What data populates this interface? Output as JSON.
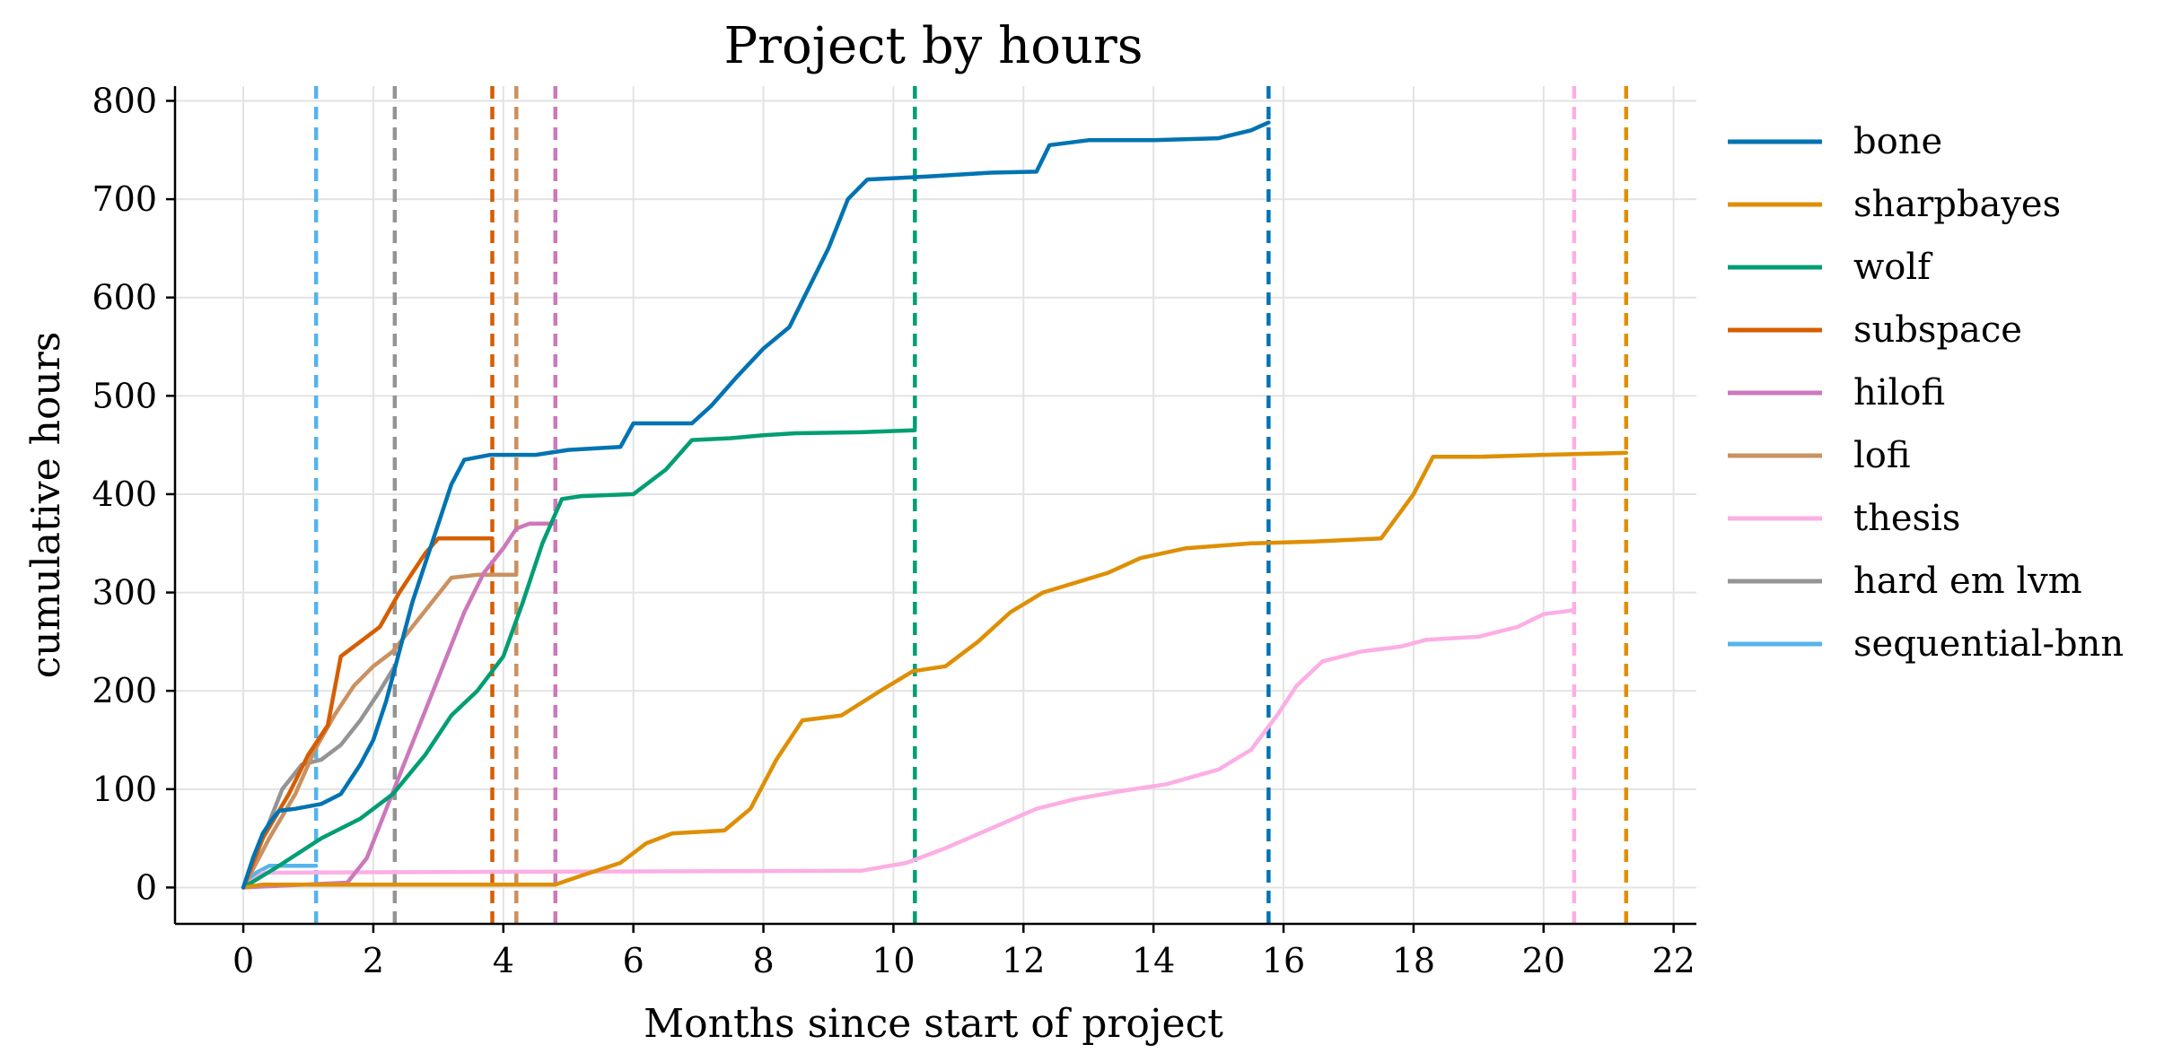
{
  "chart_data": {
    "type": "line",
    "title": "Project by hours",
    "xlabel": "Months since start of project",
    "ylabel": "cumulative hours",
    "xlim": [
      -1.05,
      22.35
    ],
    "ylim": [
      -37,
      815
    ],
    "xticks": [
      0,
      2,
      4,
      6,
      8,
      10,
      12,
      14,
      16,
      18,
      20,
      22
    ],
    "yticks": [
      0,
      100,
      200,
      300,
      400,
      500,
      600,
      700,
      800
    ],
    "grid": true,
    "legend_position": "outside-right",
    "series": [
      {
        "name": "bone",
        "color": "#0173b2",
        "end_marker_x": 15.77,
        "points": [
          [
            0,
            0
          ],
          [
            0.15,
            30
          ],
          [
            0.3,
            55
          ],
          [
            0.45,
            70
          ],
          [
            0.55,
            78
          ],
          [
            0.8,
            80
          ],
          [
            1.2,
            85
          ],
          [
            1.5,
            95
          ],
          [
            1.8,
            125
          ],
          [
            2.0,
            150
          ],
          [
            2.2,
            190
          ],
          [
            2.4,
            240
          ],
          [
            2.6,
            290
          ],
          [
            2.8,
            330
          ],
          [
            3.0,
            370
          ],
          [
            3.2,
            410
          ],
          [
            3.4,
            435
          ],
          [
            3.8,
            440
          ],
          [
            4.5,
            440
          ],
          [
            5.0,
            445
          ],
          [
            5.8,
            448
          ],
          [
            6.0,
            472
          ],
          [
            6.9,
            472
          ],
          [
            7.2,
            490
          ],
          [
            7.6,
            520
          ],
          [
            8.0,
            548
          ],
          [
            8.4,
            570
          ],
          [
            8.7,
            610
          ],
          [
            9.0,
            650
          ],
          [
            9.3,
            700
          ],
          [
            9.6,
            720
          ],
          [
            10.5,
            723
          ],
          [
            11.5,
            727
          ],
          [
            12.2,
            728
          ],
          [
            12.4,
            755
          ],
          [
            13.0,
            760
          ],
          [
            14.0,
            760
          ],
          [
            15.0,
            762
          ],
          [
            15.5,
            770
          ],
          [
            15.77,
            778
          ]
        ]
      },
      {
        "name": "sharpbayes",
        "color": "#de8f05",
        "end_marker_x": 21.27,
        "points": [
          [
            0,
            0
          ],
          [
            0.3,
            3
          ],
          [
            4.8,
            3
          ],
          [
            5.2,
            12
          ],
          [
            5.8,
            25
          ],
          [
            6.2,
            45
          ],
          [
            6.6,
            55
          ],
          [
            7.4,
            58
          ],
          [
            7.8,
            80
          ],
          [
            8.2,
            130
          ],
          [
            8.6,
            170
          ],
          [
            9.2,
            175
          ],
          [
            9.8,
            200
          ],
          [
            10.3,
            220
          ],
          [
            10.8,
            225
          ],
          [
            11.3,
            250
          ],
          [
            11.8,
            280
          ],
          [
            12.3,
            300
          ],
          [
            12.8,
            310
          ],
          [
            13.3,
            320
          ],
          [
            13.8,
            335
          ],
          [
            14.5,
            345
          ],
          [
            15.5,
            350
          ],
          [
            16.5,
            352
          ],
          [
            17.5,
            355
          ],
          [
            18.0,
            400
          ],
          [
            18.3,
            438
          ],
          [
            19.0,
            438
          ],
          [
            20.0,
            440
          ],
          [
            21.27,
            442
          ]
        ]
      },
      {
        "name": "wolf",
        "color": "#029e73",
        "end_marker_x": 10.33,
        "points": [
          [
            0,
            0
          ],
          [
            0.5,
            20
          ],
          [
            1.2,
            50
          ],
          [
            1.8,
            70
          ],
          [
            2.3,
            95
          ],
          [
            2.8,
            135
          ],
          [
            3.2,
            175
          ],
          [
            3.6,
            200
          ],
          [
            4.0,
            235
          ],
          [
            4.3,
            290
          ],
          [
            4.6,
            350
          ],
          [
            4.9,
            395
          ],
          [
            5.2,
            398
          ],
          [
            6.0,
            400
          ],
          [
            6.5,
            425
          ],
          [
            6.9,
            455
          ],
          [
            7.5,
            457
          ],
          [
            8.0,
            460
          ],
          [
            8.5,
            462
          ],
          [
            9.5,
            463
          ],
          [
            10.33,
            465
          ]
        ]
      },
      {
        "name": "subspace",
        "color": "#d55e00",
        "end_marker_x": 3.83,
        "points": [
          [
            0,
            0
          ],
          [
            0.3,
            50
          ],
          [
            0.7,
            95
          ],
          [
            1.0,
            135
          ],
          [
            1.3,
            165
          ],
          [
            1.5,
            235
          ],
          [
            1.8,
            250
          ],
          [
            2.1,
            265
          ],
          [
            2.4,
            300
          ],
          [
            2.8,
            340
          ],
          [
            3.0,
            355
          ],
          [
            3.83,
            355
          ]
        ]
      },
      {
        "name": "hilofi",
        "color": "#cc78bc",
        "end_marker_x": 4.8,
        "points": [
          [
            0,
            0
          ],
          [
            1.6,
            5
          ],
          [
            1.9,
            30
          ],
          [
            2.2,
            80
          ],
          [
            2.5,
            130
          ],
          [
            2.8,
            180
          ],
          [
            3.1,
            230
          ],
          [
            3.4,
            280
          ],
          [
            3.7,
            320
          ],
          [
            4.0,
            345
          ],
          [
            4.2,
            365
          ],
          [
            4.4,
            370
          ],
          [
            4.8,
            370
          ]
        ]
      },
      {
        "name": "lofi",
        "color": "#ca9161",
        "end_marker_x": 4.2,
        "points": [
          [
            0,
            0
          ],
          [
            0.4,
            50
          ],
          [
            0.8,
            95
          ],
          [
            1.1,
            140
          ],
          [
            1.4,
            175
          ],
          [
            1.7,
            205
          ],
          [
            2.0,
            225
          ],
          [
            2.3,
            240
          ],
          [
            2.6,
            265
          ],
          [
            2.9,
            290
          ],
          [
            3.2,
            315
          ],
          [
            3.6,
            318
          ],
          [
            4.2,
            318
          ]
        ]
      },
      {
        "name": "thesis",
        "color": "#fbafe4",
        "end_marker_x": 20.47,
        "points": [
          [
            0,
            0
          ],
          [
            0.3,
            15
          ],
          [
            4.0,
            16
          ],
          [
            9.5,
            17
          ],
          [
            10.2,
            25
          ],
          [
            10.8,
            40
          ],
          [
            11.5,
            60
          ],
          [
            12.2,
            80
          ],
          [
            12.8,
            90
          ],
          [
            13.5,
            98
          ],
          [
            14.2,
            105
          ],
          [
            15.0,
            120
          ],
          [
            15.5,
            140
          ],
          [
            15.9,
            175
          ],
          [
            16.2,
            205
          ],
          [
            16.6,
            230
          ],
          [
            17.2,
            240
          ],
          [
            17.8,
            245
          ],
          [
            18.2,
            252
          ],
          [
            19.0,
            255
          ],
          [
            19.6,
            265
          ],
          [
            20.0,
            278
          ],
          [
            20.47,
            282
          ]
        ]
      },
      {
        "name": "hard em lvm",
        "color": "#949494",
        "end_marker_x": 2.33,
        "points": [
          [
            0,
            0
          ],
          [
            0.3,
            50
          ],
          [
            0.6,
            100
          ],
          [
            0.9,
            125
          ],
          [
            1.2,
            130
          ],
          [
            1.5,
            145
          ],
          [
            1.8,
            170
          ],
          [
            2.1,
            200
          ],
          [
            2.33,
            225
          ]
        ]
      },
      {
        "name": "sequential-bnn",
        "color": "#56b4e9",
        "end_marker_x": 1.12,
        "points": [
          [
            0,
            0
          ],
          [
            0.2,
            15
          ],
          [
            0.4,
            22
          ],
          [
            0.8,
            22
          ],
          [
            1.12,
            22
          ]
        ]
      }
    ]
  }
}
